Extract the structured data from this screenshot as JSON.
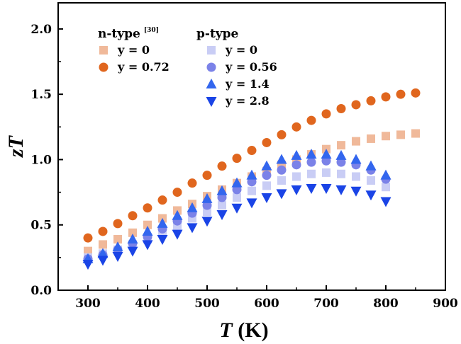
{
  "chart_data": {
    "type": "scatter",
    "xlabel": {
      "symbol": "T",
      "unit": " (K)"
    },
    "ylabel": "zT",
    "xlim": [
      250,
      900
    ],
    "ylim": [
      0.0,
      2.2
    ],
    "x_ticks": [
      300,
      400,
      500,
      600,
      700,
      800,
      900
    ],
    "y_ticks": [
      "0.0",
      "0.5",
      "1.0",
      "1.5",
      "2.0"
    ],
    "legend_groups": [
      {
        "title": "n-type",
        "ref": "[30]"
      },
      {
        "title": "p-type",
        "ref": ""
      }
    ],
    "series": [
      {
        "name": "y = 0",
        "group": 0,
        "marker": "square",
        "color": "#F0B99A",
        "x": [
          300,
          325,
          350,
          375,
          400,
          425,
          450,
          475,
          500,
          525,
          550,
          575,
          600,
          625,
          650,
          675,
          700,
          725,
          750,
          775,
          800,
          825,
          850
        ],
        "y": [
          0.3,
          0.35,
          0.39,
          0.44,
          0.5,
          0.55,
          0.61,
          0.66,
          0.72,
          0.77,
          0.82,
          0.87,
          0.91,
          0.96,
          1.0,
          1.04,
          1.08,
          1.11,
          1.14,
          1.16,
          1.18,
          1.19,
          1.2
        ]
      },
      {
        "name": "y = 0.72",
        "group": 0,
        "marker": "circle",
        "color": "#E0661E",
        "x": [
          300,
          325,
          350,
          375,
          400,
          425,
          450,
          475,
          500,
          525,
          550,
          575,
          600,
          625,
          650,
          675,
          700,
          725,
          750,
          775,
          800,
          825,
          850
        ],
        "y": [
          0.4,
          0.45,
          0.51,
          0.57,
          0.63,
          0.69,
          0.75,
          0.82,
          0.88,
          0.95,
          1.01,
          1.07,
          1.13,
          1.19,
          1.25,
          1.3,
          1.35,
          1.39,
          1.42,
          1.45,
          1.48,
          1.5,
          1.51
        ]
      },
      {
        "name": "y = 0",
        "group": 1,
        "marker": "square",
        "color": "#C9CDF5",
        "x": [
          300,
          325,
          350,
          375,
          400,
          425,
          450,
          475,
          500,
          525,
          550,
          575,
          600,
          625,
          650,
          675,
          700,
          725,
          750,
          775,
          800
        ],
        "y": [
          0.25,
          0.28,
          0.31,
          0.35,
          0.39,
          0.44,
          0.49,
          0.55,
          0.6,
          0.65,
          0.71,
          0.76,
          0.8,
          0.84,
          0.87,
          0.89,
          0.9,
          0.89,
          0.87,
          0.84,
          0.79
        ]
      },
      {
        "name": "y = 0.56",
        "group": 1,
        "marker": "circle",
        "color": "#7B82E8",
        "x": [
          300,
          325,
          350,
          375,
          400,
          425,
          450,
          475,
          500,
          525,
          550,
          575,
          600,
          625,
          650,
          675,
          700,
          725,
          750,
          775,
          800
        ],
        "y": [
          0.24,
          0.27,
          0.31,
          0.36,
          0.41,
          0.47,
          0.53,
          0.59,
          0.65,
          0.71,
          0.77,
          0.83,
          0.88,
          0.92,
          0.96,
          0.98,
          0.99,
          0.98,
          0.96,
          0.92,
          0.85
        ]
      },
      {
        "name": "y = 1.4",
        "group": 1,
        "marker": "triangle-up",
        "color": "#3366EE",
        "x": [
          300,
          325,
          350,
          375,
          400,
          425,
          450,
          475,
          500,
          525,
          550,
          575,
          600,
          625,
          650,
          675,
          700,
          725,
          750,
          775,
          800
        ],
        "y": [
          0.24,
          0.28,
          0.33,
          0.39,
          0.45,
          0.51,
          0.57,
          0.63,
          0.7,
          0.76,
          0.82,
          0.88,
          0.95,
          1.0,
          1.03,
          1.04,
          1.04,
          1.03,
          1.0,
          0.95,
          0.88
        ]
      },
      {
        "name": "y = 2.8",
        "group": 1,
        "marker": "triangle-down",
        "color": "#1A44E6",
        "x": [
          300,
          325,
          350,
          375,
          400,
          425,
          450,
          475,
          500,
          525,
          550,
          575,
          600,
          625,
          650,
          675,
          700,
          725,
          750,
          775,
          800
        ],
        "y": [
          0.2,
          0.23,
          0.26,
          0.3,
          0.35,
          0.39,
          0.43,
          0.48,
          0.53,
          0.58,
          0.63,
          0.67,
          0.71,
          0.74,
          0.77,
          0.78,
          0.78,
          0.77,
          0.76,
          0.73,
          0.68
        ]
      }
    ],
    "grid": false,
    "legend_position": "top-left"
  }
}
